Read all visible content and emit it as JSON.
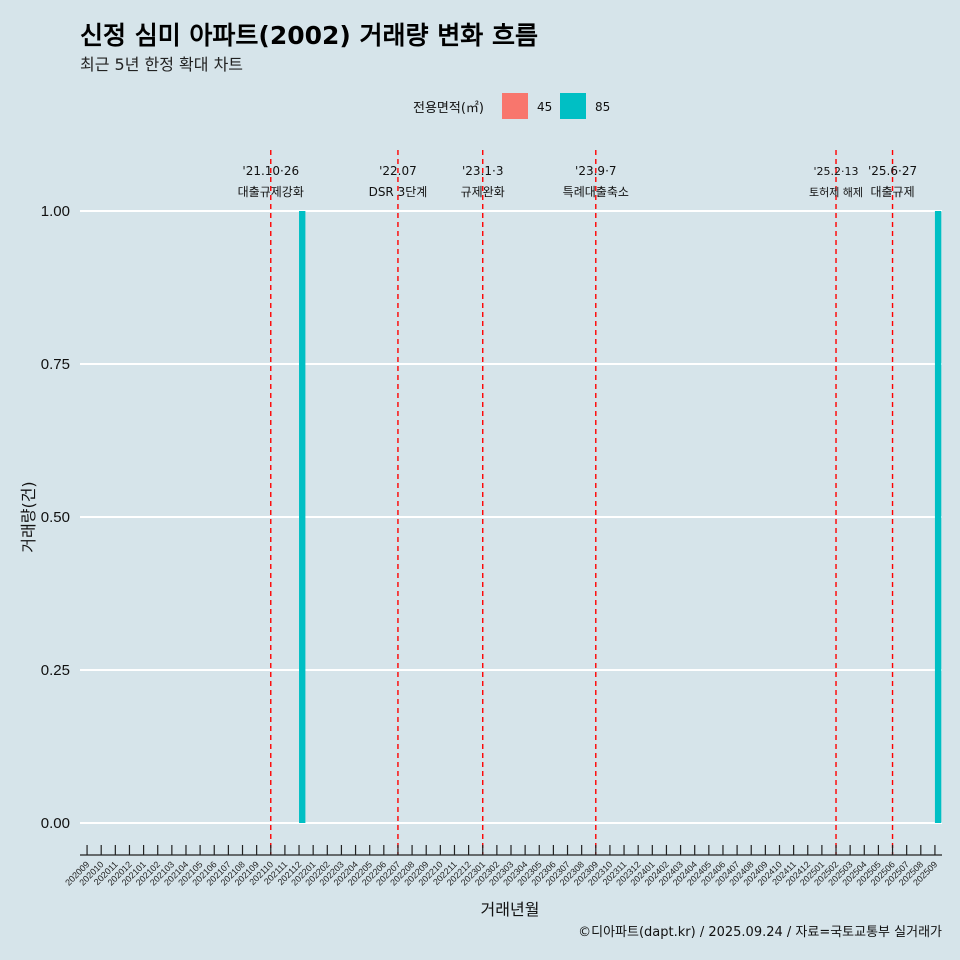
{
  "title": "신정 심미 아파트(2002) 거래량 변화 흐름",
  "subtitle": "최근 5년 한정 확대 차트",
  "caption": "©디아파트(dapt.kr) / 2025.09.24 / 자료=국토교통부 실거래가",
  "colors": {
    "s45": "#f8766d",
    "s85": "#00bfc4",
    "background": "#d6e4ea",
    "event_line": "#ff0000",
    "grid": "#ffffff"
  },
  "chart_data": {
    "type": "bar",
    "title": "신정 심미 아파트(2002) 거래량 변화 흐름",
    "subtitle": "최근 5년 한정 확대 차트",
    "xlabel": "거래년월",
    "ylabel": "거래량(건)",
    "ylim": [
      0,
      1
    ],
    "yticks": [
      0,
      0.25,
      0.5,
      0.75,
      1
    ],
    "ytick_labels": [
      "0.00",
      "0.25",
      "0.50",
      "0.75",
      "1.00"
    ],
    "legend": {
      "title": "전용면적(㎡)",
      "position": "top",
      "entries": [
        "45",
        "85"
      ]
    },
    "categories": [
      "202009",
      "202010",
      "202011",
      "202012",
      "202101",
      "202102",
      "202103",
      "202104",
      "202105",
      "202106",
      "202107",
      "202108",
      "202109",
      "202110",
      "202111",
      "202112",
      "202201",
      "202202",
      "202203",
      "202204",
      "202205",
      "202206",
      "202207",
      "202208",
      "202209",
      "202210",
      "202211",
      "202212",
      "202301",
      "202302",
      "202303",
      "202304",
      "202305",
      "202306",
      "202307",
      "202308",
      "202309",
      "202310",
      "202311",
      "202312",
      "202401",
      "202402",
      "202403",
      "202404",
      "202405",
      "202406",
      "202407",
      "202408",
      "202409",
      "202410",
      "202411",
      "202412",
      "202501",
      "202502",
      "202503",
      "202504",
      "202505",
      "202506",
      "202507",
      "202508",
      "202509"
    ],
    "series": [
      {
        "name": "45",
        "values": [
          0,
          0,
          0,
          0,
          0,
          0,
          0,
          0,
          0,
          0,
          0,
          0,
          0,
          0,
          0,
          0,
          0,
          0,
          0,
          0,
          0,
          0,
          0,
          0,
          0,
          0,
          0,
          0,
          0,
          0,
          0,
          0,
          0,
          0,
          0,
          0,
          0,
          0,
          0,
          0,
          0,
          0,
          0,
          0,
          0,
          0,
          0,
          0,
          0,
          0,
          0,
          0,
          0,
          0,
          0,
          0,
          0,
          0,
          0,
          0,
          0
        ]
      },
      {
        "name": "85",
        "values": [
          0,
          0,
          0,
          0,
          0,
          0,
          0,
          0,
          0,
          0,
          0,
          0,
          0,
          0,
          0,
          1,
          0,
          0,
          0,
          0,
          0,
          0,
          0,
          0,
          0,
          0,
          0,
          0,
          0,
          0,
          0,
          0,
          0,
          0,
          0,
          0,
          0,
          0,
          0,
          0,
          0,
          0,
          0,
          0,
          0,
          0,
          0,
          0,
          0,
          0,
          0,
          0,
          0,
          0,
          0,
          0,
          0,
          0,
          0,
          0,
          1
        ]
      }
    ],
    "events": [
      {
        "month": "202110",
        "date": "'21.10·26",
        "label": "대출규제강화"
      },
      {
        "month": "202207",
        "date": "'22.07",
        "label": "DSR 3단계"
      },
      {
        "month": "202301",
        "date": "'23.1·3",
        "label": "규제완화"
      },
      {
        "month": "202309",
        "date": "'23.9·7",
        "label": "특례대출축소"
      },
      {
        "month": "202502",
        "date": "'25.2·13",
        "label": "토허제 해제"
      },
      {
        "month": "202506",
        "date": "'25.6·27",
        "label": "대출규제"
      }
    ]
  }
}
